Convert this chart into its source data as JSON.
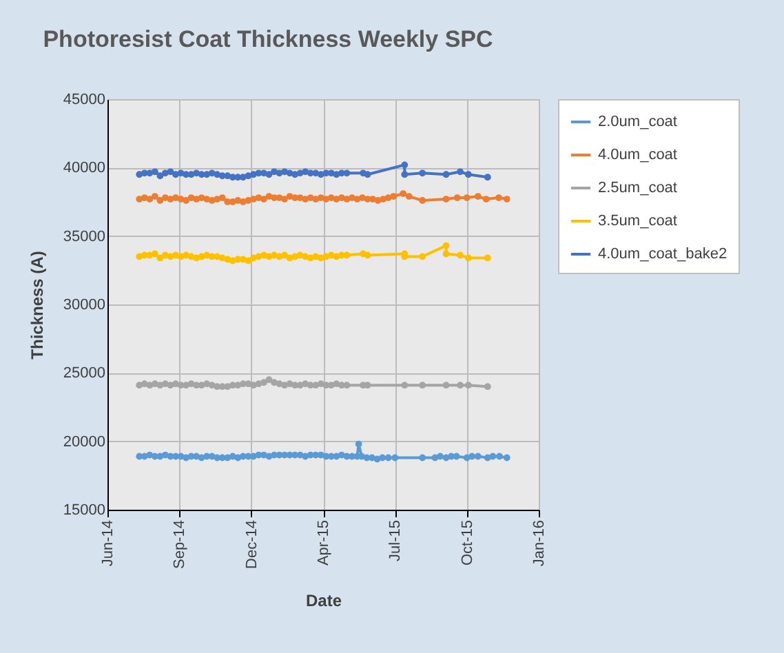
{
  "chart_data": {
    "type": "line",
    "title": "Photoresist Coat Thickness Weekly SPC",
    "xlabel": "Date",
    "ylabel": "Thickness (A)",
    "xlim": [
      "2014-06-20",
      "2016-01-23"
    ],
    "xticks": [
      {
        "value": "2014-06-20",
        "label": "Jun-14"
      },
      {
        "value": "2014-09-25",
        "label": "Sep-14"
      },
      {
        "value": "2014-12-31",
        "label": "Dec-14"
      },
      {
        "value": "2015-04-07",
        "label": "Apr-15"
      },
      {
        "value": "2015-07-13",
        "label": "Jul-15"
      },
      {
        "value": "2015-10-18",
        "label": "Oct-15"
      },
      {
        "value": "2016-01-23",
        "label": "Jan-16"
      }
    ],
    "ylim": [
      15000,
      45000
    ],
    "yticks": [
      15000,
      20000,
      25000,
      30000,
      35000,
      40000,
      45000
    ],
    "grid": true,
    "legend": "right",
    "marker": "circle",
    "line_style": "solid",
    "series": [
      {
        "name": "2.0um_coat",
        "color": "#5b9bd5",
        "x": [
          "2014-08-02",
          "2014-08-09",
          "2014-08-16",
          "2014-08-23",
          "2014-08-30",
          "2014-09-06",
          "2014-09-13",
          "2014-09-20",
          "2014-09-27",
          "2014-10-04",
          "2014-10-11",
          "2014-10-18",
          "2014-10-25",
          "2014-11-01",
          "2014-11-08",
          "2014-11-15",
          "2014-11-22",
          "2014-11-29",
          "2014-12-06",
          "2014-12-13",
          "2014-12-20",
          "2014-12-27",
          "2015-01-03",
          "2015-01-10",
          "2015-01-17",
          "2015-01-24",
          "2015-01-31",
          "2015-02-07",
          "2015-02-14",
          "2015-02-21",
          "2015-02-28",
          "2015-03-07",
          "2015-03-14",
          "2015-03-21",
          "2015-03-28",
          "2015-04-04",
          "2015-04-11",
          "2015-04-18",
          "2015-04-25",
          "2015-05-02",
          "2015-05-09",
          "2015-05-16",
          "2015-05-23",
          "2015-05-25",
          "2015-05-29",
          "2015-06-05",
          "2015-06-12",
          "2015-06-19",
          "2015-06-26",
          "2015-07-04",
          "2015-07-13",
          "2015-08-19",
          "2015-09-05",
          "2015-09-12",
          "2015-09-20",
          "2015-09-27",
          "2015-10-04",
          "2015-10-18",
          "2015-10-25",
          "2015-11-02",
          "2015-11-15",
          "2015-11-22",
          "2015-12-01",
          "2015-12-11"
        ],
        "values": [
          18900,
          18900,
          19000,
          18900,
          18900,
          19000,
          18900,
          18900,
          18900,
          18800,
          18900,
          18900,
          18800,
          18900,
          18900,
          18800,
          18800,
          18800,
          18900,
          18800,
          18900,
          18900,
          18900,
          19000,
          19000,
          18900,
          19000,
          19000,
          19000,
          19000,
          19000,
          19000,
          18900,
          19000,
          19000,
          19000,
          18900,
          18900,
          18900,
          19000,
          18900,
          18900,
          18900,
          19800,
          18900,
          18800,
          18800,
          18700,
          18800,
          18800,
          18800,
          18800,
          18800,
          18900,
          18800,
          18900,
          18900,
          18800,
          18900,
          18900,
          18800,
          18900,
          18900,
          18800
        ]
      },
      {
        "name": "4.0um_coat",
        "color": "#ed7d31",
        "x": [
          "2014-08-02",
          "2014-08-09",
          "2014-08-16",
          "2014-08-23",
          "2014-08-30",
          "2014-09-06",
          "2014-09-13",
          "2014-09-20",
          "2014-09-27",
          "2014-10-04",
          "2014-10-11",
          "2014-10-18",
          "2014-10-25",
          "2014-11-01",
          "2014-11-08",
          "2014-11-15",
          "2014-11-22",
          "2014-11-29",
          "2014-12-06",
          "2014-12-13",
          "2014-12-20",
          "2014-12-27",
          "2015-01-03",
          "2015-01-10",
          "2015-01-17",
          "2015-01-24",
          "2015-01-31",
          "2015-02-07",
          "2015-02-14",
          "2015-02-21",
          "2015-02-28",
          "2015-03-07",
          "2015-03-14",
          "2015-03-21",
          "2015-03-28",
          "2015-04-04",
          "2015-04-11",
          "2015-04-18",
          "2015-04-25",
          "2015-05-02",
          "2015-05-09",
          "2015-05-16",
          "2015-05-23",
          "2015-05-30",
          "2015-06-06",
          "2015-06-13",
          "2015-06-20",
          "2015-06-27",
          "2015-07-04",
          "2015-07-11",
          "2015-07-24",
          "2015-08-01",
          "2015-08-19",
          "2015-09-20",
          "2015-10-05",
          "2015-10-18",
          "2015-11-02",
          "2015-11-13",
          "2015-11-30",
          "2015-12-11"
        ],
        "values": [
          37700,
          37800,
          37700,
          37900,
          37600,
          37800,
          37700,
          37800,
          37700,
          37600,
          37800,
          37700,
          37800,
          37700,
          37600,
          37700,
          37800,
          37500,
          37500,
          37600,
          37500,
          37600,
          37700,
          37800,
          37700,
          37900,
          37800,
          37800,
          37700,
          37900,
          37800,
          37800,
          37700,
          37800,
          37700,
          37800,
          37700,
          37800,
          37700,
          37800,
          37700,
          37800,
          37700,
          37800,
          37700,
          37700,
          37600,
          37700,
          37800,
          37900,
          38100,
          37900,
          37600,
          37700,
          37800,
          37800,
          37900,
          37700,
          37800,
          37700
        ]
      },
      {
        "name": "2.5um_coat",
        "color": "#a5a5a5",
        "x": [
          "2014-08-02",
          "2014-08-09",
          "2014-08-16",
          "2014-08-23",
          "2014-08-30",
          "2014-09-06",
          "2014-09-13",
          "2014-09-20",
          "2014-09-27",
          "2014-10-04",
          "2014-10-11",
          "2014-10-18",
          "2014-10-25",
          "2014-11-01",
          "2014-11-08",
          "2014-11-15",
          "2014-11-22",
          "2014-11-29",
          "2014-12-06",
          "2014-12-13",
          "2014-12-20",
          "2014-12-27",
          "2015-01-03",
          "2015-01-10",
          "2015-01-17",
          "2015-01-24",
          "2015-01-31",
          "2015-02-07",
          "2015-02-14",
          "2015-02-21",
          "2015-02-28",
          "2015-03-07",
          "2015-03-14",
          "2015-03-21",
          "2015-03-28",
          "2015-04-04",
          "2015-04-11",
          "2015-04-18",
          "2015-04-25",
          "2015-05-02",
          "2015-05-09",
          "2015-05-31",
          "2015-06-06",
          "2015-07-26",
          "2015-08-19",
          "2015-09-20",
          "2015-10-09",
          "2015-10-20",
          "2015-11-15"
        ],
        "values": [
          24100,
          24200,
          24100,
          24200,
          24100,
          24200,
          24100,
          24200,
          24100,
          24100,
          24200,
          24100,
          24100,
          24200,
          24100,
          24000,
          24000,
          24000,
          24100,
          24100,
          24200,
          24200,
          24100,
          24200,
          24300,
          24500,
          24300,
          24200,
          24100,
          24200,
          24100,
          24100,
          24200,
          24100,
          24100,
          24200,
          24100,
          24100,
          24200,
          24100,
          24100,
          24100,
          24100,
          24100,
          24100,
          24100,
          24100,
          24100,
          24000
        ]
      },
      {
        "name": "3.5um_coat",
        "color": "#ffc000",
        "x": [
          "2014-08-02",
          "2014-08-09",
          "2014-08-16",
          "2014-08-23",
          "2014-08-30",
          "2014-09-06",
          "2014-09-13",
          "2014-09-20",
          "2014-09-27",
          "2014-10-04",
          "2014-10-11",
          "2014-10-18",
          "2014-10-25",
          "2014-11-01",
          "2014-11-08",
          "2014-11-15",
          "2014-11-22",
          "2014-11-29",
          "2014-12-06",
          "2014-12-13",
          "2014-12-20",
          "2014-12-27",
          "2015-01-03",
          "2015-01-10",
          "2015-01-17",
          "2015-01-24",
          "2015-01-31",
          "2015-02-07",
          "2015-02-14",
          "2015-02-21",
          "2015-02-28",
          "2015-03-07",
          "2015-03-14",
          "2015-03-21",
          "2015-03-28",
          "2015-04-04",
          "2015-04-11",
          "2015-04-18",
          "2015-04-25",
          "2015-05-02",
          "2015-05-09",
          "2015-05-31",
          "2015-06-06",
          "2015-07-26",
          "2015-07-26",
          "2015-08-19",
          "2015-09-20",
          "2015-09-20",
          "2015-10-09",
          "2015-10-20",
          "2015-11-15"
        ],
        "values": [
          33500,
          33600,
          33600,
          33700,
          33400,
          33600,
          33500,
          33600,
          33500,
          33600,
          33500,
          33400,
          33500,
          33600,
          33500,
          33500,
          33400,
          33300,
          33200,
          33300,
          33300,
          33200,
          33400,
          33500,
          33600,
          33500,
          33600,
          33500,
          33600,
          33400,
          33500,
          33600,
          33500,
          33400,
          33500,
          33400,
          33500,
          33600,
          33500,
          33600,
          33600,
          33700,
          33600,
          33700,
          33500,
          33500,
          34300,
          33700,
          33600,
          33400,
          33400
        ]
      },
      {
        "name": "4.0um_coat_bake2",
        "color": "#4472c4",
        "x": [
          "2014-08-02",
          "2014-08-09",
          "2014-08-16",
          "2014-08-23",
          "2014-08-30",
          "2014-09-06",
          "2014-09-13",
          "2014-09-20",
          "2014-09-27",
          "2014-10-04",
          "2014-10-11",
          "2014-10-18",
          "2014-10-25",
          "2014-11-01",
          "2014-11-08",
          "2014-11-15",
          "2014-11-22",
          "2014-11-29",
          "2014-12-06",
          "2014-12-13",
          "2014-12-20",
          "2014-12-27",
          "2015-01-03",
          "2015-01-10",
          "2015-01-17",
          "2015-01-24",
          "2015-01-31",
          "2015-02-07",
          "2015-02-14",
          "2015-02-21",
          "2015-02-28",
          "2015-03-07",
          "2015-03-14",
          "2015-03-21",
          "2015-03-28",
          "2015-04-04",
          "2015-04-11",
          "2015-04-18",
          "2015-04-25",
          "2015-05-02",
          "2015-05-09",
          "2015-05-31",
          "2015-06-06",
          "2015-07-26",
          "2015-07-26",
          "2015-08-19",
          "2015-09-20",
          "2015-10-09",
          "2015-10-20",
          "2015-11-15"
        ],
        "values": [
          39500,
          39600,
          39600,
          39700,
          39400,
          39600,
          39700,
          39500,
          39600,
          39500,
          39500,
          39600,
          39500,
          39500,
          39600,
          39500,
          39400,
          39400,
          39300,
          39300,
          39300,
          39400,
          39500,
          39600,
          39600,
          39500,
          39700,
          39600,
          39700,
          39600,
          39500,
          39600,
          39700,
          39600,
          39600,
          39500,
          39600,
          39600,
          39500,
          39600,
          39600,
          39600,
          39500,
          40200,
          39500,
          39600,
          39500,
          39700,
          39500,
          39300
        ]
      }
    ]
  }
}
